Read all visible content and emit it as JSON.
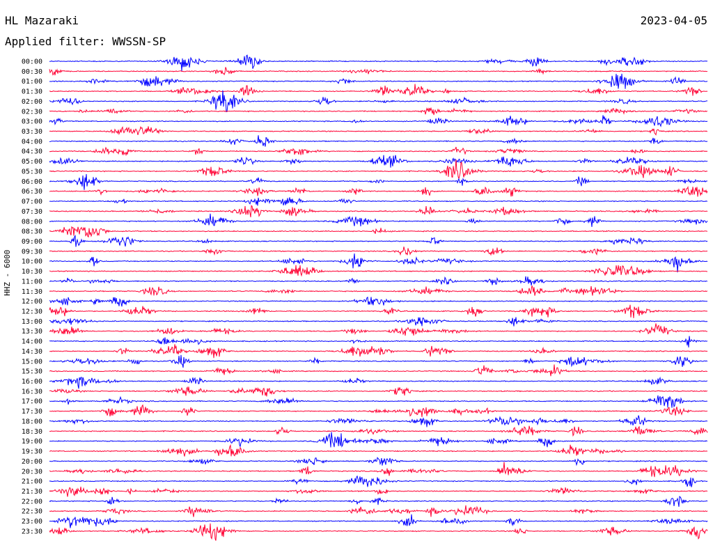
{
  "header": {
    "station": "HL Mazaraki",
    "filter": "Applied filter: WWSSN-SP",
    "date": "2023-04-05"
  },
  "channel_label": "HHZ - 6000",
  "colors": {
    "blue": "#0000ff",
    "red": "#ff0033",
    "text": "#000000",
    "background": "#ffffff"
  },
  "chart_data": {
    "type": "line",
    "title": "",
    "y_tick_labels": [
      "00:00",
      "00:30",
      "01:00",
      "01:30",
      "02:00",
      "02:30",
      "03:00",
      "03:30",
      "04:00",
      "04:30",
      "05:00",
      "05:30",
      "06:00",
      "06:30",
      "07:00",
      "07:30",
      "08:00",
      "08:30",
      "09:00",
      "09:30",
      "10:00",
      "10:30",
      "11:00",
      "11:30",
      "12:00",
      "12:30",
      "13:00",
      "13:30",
      "14:00",
      "14:30",
      "15:00",
      "15:30",
      "16:00",
      "16:30",
      "17:00",
      "17:30",
      "18:00",
      "18:30",
      "19:00",
      "19:30",
      "20:00",
      "20:30",
      "21:00",
      "21:30",
      "22:00",
      "22:30",
      "23:00",
      "23:30"
    ],
    "trace_colors": [
      "blue",
      "red"
    ],
    "notes": "helicorder: 48 half-hour traces alternating blue/red"
  }
}
